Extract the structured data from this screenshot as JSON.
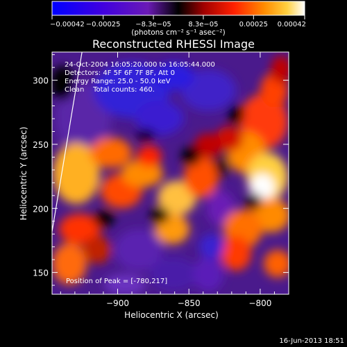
{
  "chart_data": {
    "type": "heatmap",
    "title": "Reconstructed RHESSI Image",
    "xlabel": "Heliocentric X (arcsec)",
    "ylabel": "Heliocentric Y (arcsec)",
    "xlim": [
      -946,
      -780
    ],
    "ylim": [
      133,
      322
    ],
    "x_ticks": [
      -900,
      -850,
      -800
    ],
    "x_tick_labels": [
      "−900",
      "−850",
      "−800"
    ],
    "y_ticks": [
      150,
      200,
      250,
      300
    ],
    "y_tick_labels": [
      "150",
      "200",
      "250",
      "300"
    ],
    "colorbar": {
      "range": [
        -0.00042,
        0.00042
      ],
      "tick_values": [
        -0.00042,
        -0.00025,
        -8.3e-05,
        8.3e-05,
        0.00025,
        0.00042
      ],
      "tick_labels": [
        "−0.00042",
        "−0.00025",
        "−8.3e−05",
        "8.3e−05",
        "0.00025",
        "0.00042"
      ],
      "unit_label": "(photons cm⁻² s⁻¹ asec⁻²)",
      "colors": [
        "#0000ff",
        "#4000e0",
        "#6a1ab5",
        "#000000",
        "#a00000",
        "#ff2000",
        "#ff8c00",
        "#ffd040",
        "#ffffff"
      ]
    },
    "annotations": {
      "time": "24-Oct-2004 16:05:20.000 to 16:05:44.000",
      "detectors": "Detectors: 4F 5F 6F 7F 8F, Att 0",
      "energy": "Energy Range: 25.0 - 50.0 keV",
      "clean": "Clean    Total counts: 460.",
      "peak": "Position of Peak = [-780,217]"
    },
    "peak": [
      -780,
      217
    ],
    "limb_line": [
      [
        -946,
        182
      ],
      [
        -925,
        322
      ]
    ],
    "footer": "16-Jun-2013 18:51"
  }
}
